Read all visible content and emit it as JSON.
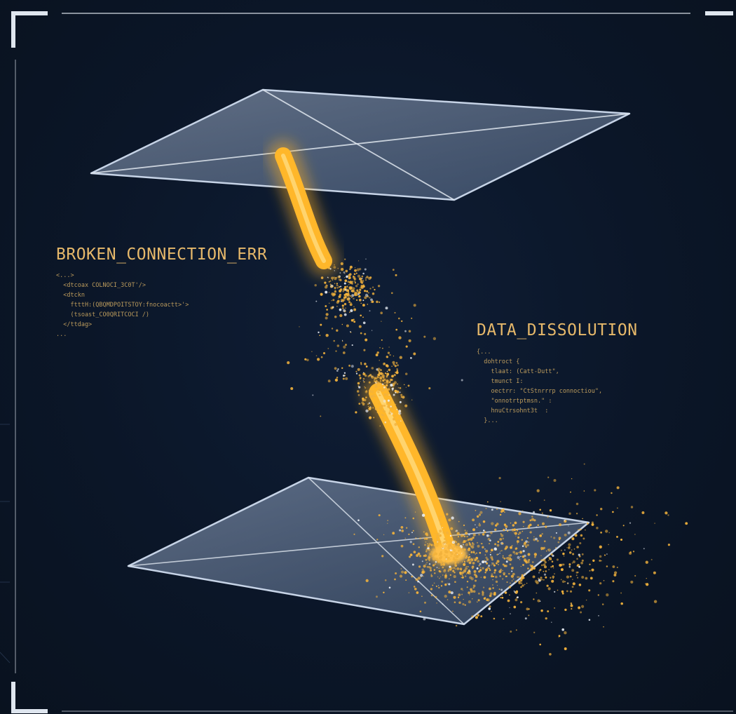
{
  "labels": {
    "broken": {
      "title": "BROKEN_CONNECTION_ERR",
      "lines": [
        "<...>",
        "  <dtcoax COLNOCI_3C0T'/>",
        "  <dtckn",
        "    ftttH:(QBQMDPOITSTOY:fnocoactt>'>",
        "    (tsoast_CO0QRITCOCI /)",
        "  </ttdag>",
        "..."
      ]
    },
    "dissolution": {
      "title": "DATA_DISSOLUTION",
      "lines": [
        "{...",
        "  dohtroct {",
        "    tlaat: (Catt-Dutt\",",
        "    tmunct I:",
        "    oectrr: \"CtStnrrrp connoctiou\",",
        "    \"onnotrtptmsn.\" :",
        "    hnuCtrsohnt3t  :",
        "  }..."
      ]
    }
  },
  "colors": {
    "background": "#0b1628",
    "frame": "#dfe6ef",
    "plane_stroke": "#c6d3e6",
    "plane_fill": "#8ea3c1",
    "beam": "#ffb72a",
    "particles": "#f2b23c",
    "text": "#e6b86a"
  }
}
